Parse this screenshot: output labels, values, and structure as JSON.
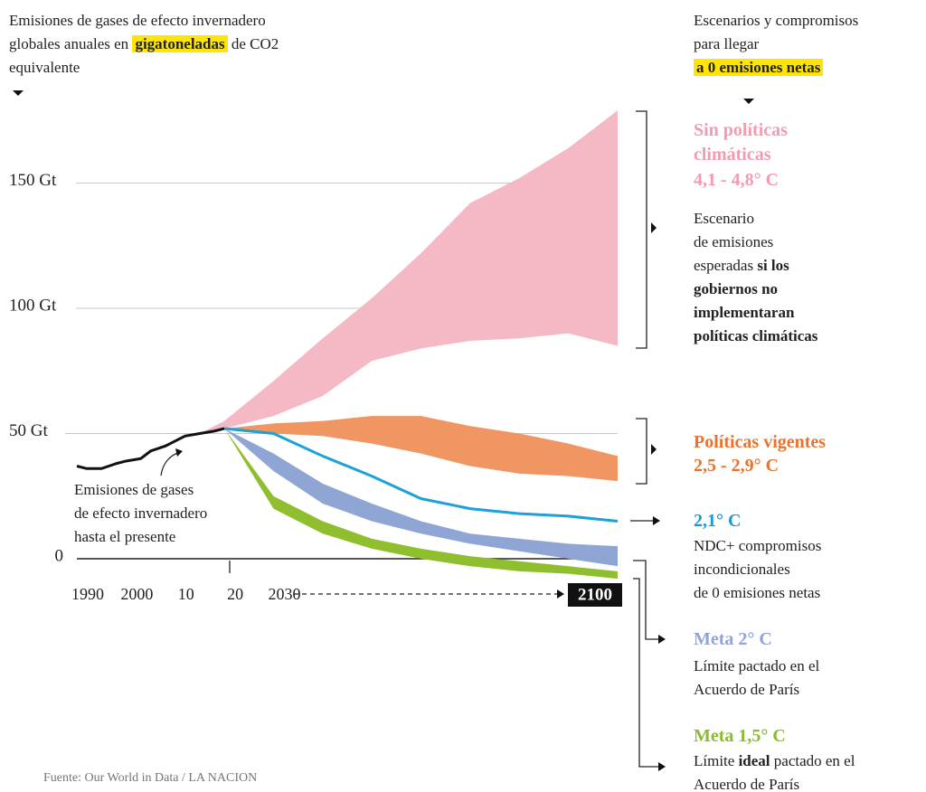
{
  "chart_data": {
    "type": "area",
    "title": [
      [
        {
          "t": "Emisiones de gases de efecto invernadero"
        }
      ],
      [
        {
          "t": "globales anuales en "
        },
        {
          "t": "gigatoneladas",
          "b": true,
          "hl": "#ffe600"
        },
        {
          "t": " de CO2"
        }
      ],
      [
        {
          "t": "equivalente"
        }
      ]
    ],
    "scenario_header": [
      [
        {
          "t": "Escenarios y compromisos"
        }
      ],
      [
        {
          "t": "para llegar"
        }
      ],
      [
        {
          "t": "a 0 emisiones netas",
          "b": true,
          "hl": "#ffe600"
        }
      ]
    ],
    "xlim": [
      1990,
      2100
    ],
    "xticks": [
      1990,
      2000,
      {
        "value": 2010,
        "label": "10"
      },
      {
        "value": 2020,
        "label": "20"
      },
      2030,
      2100
    ],
    "ylim": [
      -15,
      180
    ],
    "yticks": [
      0,
      {
        "value": 50,
        "label": "50 Gt"
      },
      {
        "value": 100,
        "label": "100 Gt"
      },
      {
        "value": 150,
        "label": "150 Gt"
      }
    ],
    "grid": true,
    "history": {
      "color": "#111111",
      "x": [
        1990,
        1992,
        1995,
        1998,
        2000,
        2003,
        2005,
        2008,
        2010,
        2012,
        2015,
        2018,
        2020
      ],
      "values": [
        37,
        36,
        36,
        38,
        39,
        40,
        43,
        45,
        47,
        49,
        50,
        51,
        52
      ],
      "note": [
        "Emisiones de gases",
        "de efecto invernadero",
        "hasta el presente"
      ]
    },
    "series": [
      {
        "name": "Sin políticas climáticas",
        "range": "4,1 - 4,8° C",
        "color": "#f5b9c6",
        "label_color": "#f29bb1",
        "x": [
          2015,
          2020,
          2030,
          2040,
          2050,
          2060,
          2070,
          2080,
          2090,
          2100
        ],
        "upper": [
          50,
          55,
          71,
          88,
          104,
          122,
          142,
          152,
          164,
          179
        ],
        "lower": [
          50,
          52,
          57,
          65,
          79,
          84,
          87,
          88,
          90,
          85
        ],
        "description": [
          [
            {
              "t": "Escenario"
            }
          ],
          [
            {
              "t": "de emisiones"
            }
          ],
          [
            {
              "t": "esperadas "
            },
            {
              "t": "si los",
              "b": true
            }
          ],
          [
            {
              "t": "gobiernos no",
              "b": true
            }
          ],
          [
            {
              "t": "implementaran",
              "b": true
            }
          ],
          [
            {
              "t": "políticas climáticas",
              "b": true
            }
          ]
        ]
      },
      {
        "name": "Políticas vigentes",
        "range": "2,5 - 2,9° C",
        "color": "#f09662",
        "label_color": "#e8742f",
        "x": [
          2020,
          2030,
          2040,
          2050,
          2060,
          2070,
          2080,
          2090,
          2100
        ],
        "upper": [
          52,
          54,
          55,
          57,
          57,
          53,
          50,
          46,
          41
        ],
        "lower": [
          52,
          50,
          49,
          46,
          42,
          37,
          34,
          33,
          31
        ]
      },
      {
        "name": "2,1° C",
        "color": "#1ea1d8",
        "label_color": "#1a9ad6",
        "x": [
          2020,
          2030,
          2040,
          2050,
          2060,
          2070,
          2080,
          2090,
          2100
        ],
        "values": [
          52,
          50,
          41,
          33,
          24,
          20,
          18,
          17,
          15
        ],
        "description": [
          [
            {
              "t": "NDC+ compromisos"
            }
          ],
          [
            {
              "t": "incondicionales"
            }
          ],
          [
            {
              "t": "de 0 emisiones netas"
            }
          ]
        ]
      },
      {
        "name": "Meta 2° C",
        "color": "#8fa6d4",
        "label_color": "#8ea5d6",
        "x": [
          2020,
          2030,
          2040,
          2050,
          2060,
          2070,
          2080,
          2090,
          2100
        ],
        "upper": [
          52,
          42,
          30,
          22,
          15,
          10,
          8,
          6,
          5
        ],
        "lower": [
          52,
          35,
          22,
          15,
          10,
          6,
          3,
          0,
          -3
        ],
        "description": [
          [
            {
              "t": "Límite pactado en el"
            }
          ],
          [
            {
              "t": "Acuerdo de París"
            }
          ]
        ]
      },
      {
        "name": "Meta 1,5° C",
        "color": "#8fbf2e",
        "label_color": "#8abd2c",
        "x": [
          2020,
          2030,
          2040,
          2050,
          2060,
          2070,
          2080,
          2090,
          2100
        ],
        "upper": [
          52,
          25,
          15,
          8,
          4,
          1,
          -1,
          -3,
          -5
        ],
        "lower": [
          52,
          20,
          10,
          4,
          0,
          -3,
          -5,
          -6,
          -8
        ],
        "description": [
          [
            {
              "t": "Límite "
            },
            {
              "t": "ideal",
              "b": true
            },
            {
              "t": " pactado en el"
            }
          ],
          [
            {
              "t": "Acuerdo de París"
            }
          ]
        ]
      }
    ],
    "source": "Fuente: Our World in Data / LA NACION"
  }
}
